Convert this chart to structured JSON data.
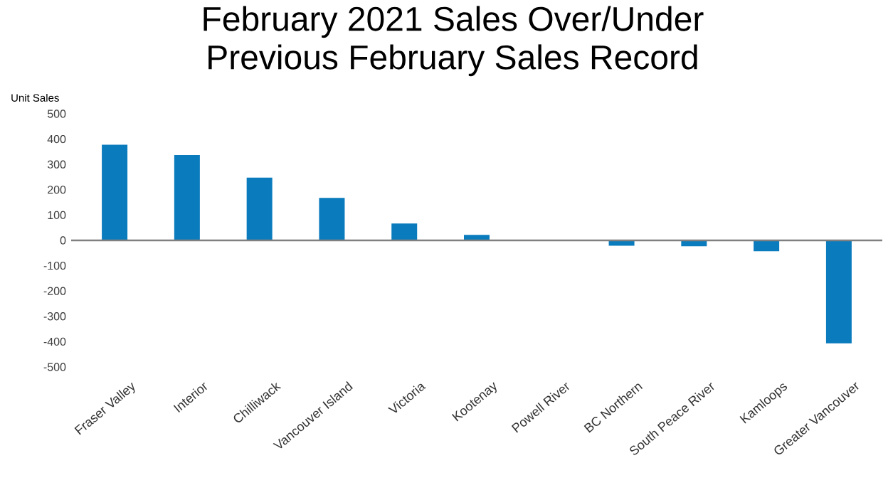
{
  "chart_data": {
    "type": "bar",
    "title": "February 2021 Sales Over/Under\nPrevious February Sales Record",
    "ylabel": "Unit Sales",
    "categories": [
      "Fraser Valley",
      "Interior",
      "Chilliwack",
      "Vancouver Island",
      "Victoria",
      "Kootenay",
      "Powell River",
      "BC Northern",
      "South Peace River",
      "Kamloops",
      "Greater Vancouver"
    ],
    "values": [
      378,
      337,
      248,
      168,
      67,
      22,
      0,
      -21,
      -23,
      -43,
      -407
    ],
    "color": "#0a7bbd",
    "ylim": [
      -500,
      500
    ],
    "yticks": [
      -500,
      -400,
      -300,
      -200,
      -100,
      0,
      100,
      200,
      300,
      400,
      500
    ]
  }
}
